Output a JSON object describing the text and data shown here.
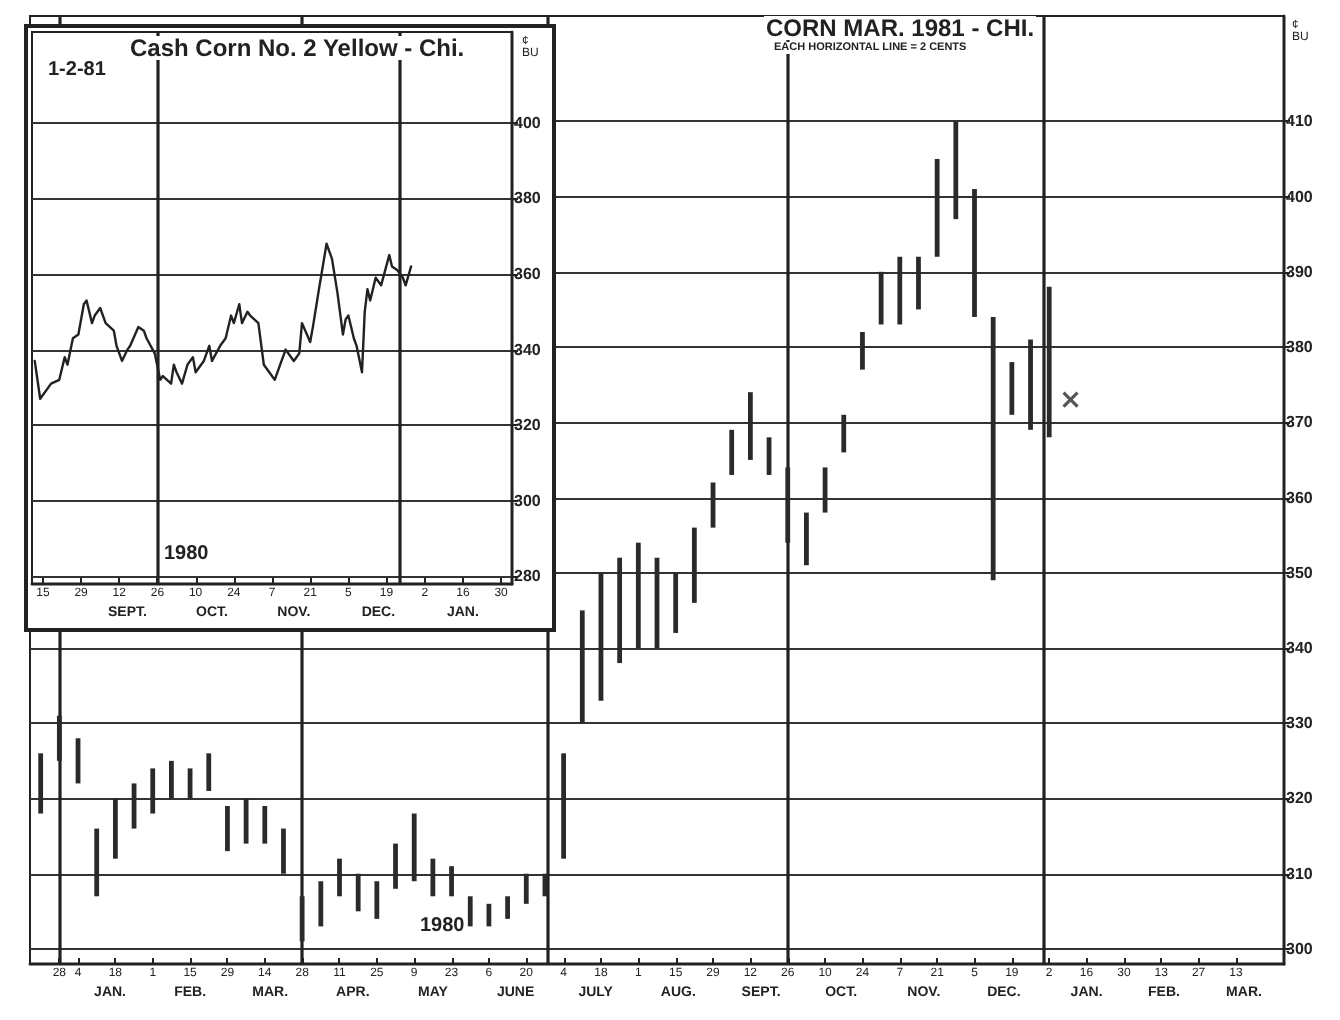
{
  "chart_data": [
    {
      "type": "line",
      "title": "Cash Corn No. 2 Yellow - Chi.",
      "ylabel": "¢ BU",
      "annotations": [
        "1-2-81",
        "1980"
      ],
      "x": [
        "1980-08-12",
        "1980-08-14",
        "1980-08-18",
        "1980-08-21",
        "1980-08-23",
        "1980-08-24",
        "1980-08-26",
        "1980-08-28",
        "1980-08-30",
        "1980-08-31",
        "1980-09-02",
        "1980-09-03",
        "1980-09-05",
        "1980-09-07",
        "1980-09-10",
        "1980-09-11",
        "1980-09-13",
        "1980-09-15",
        "1980-09-16",
        "1980-09-19",
        "1980-09-21",
        "1980-09-22",
        "1980-09-25",
        "1980-09-27",
        "1980-09-28",
        "1980-10-01",
        "1980-10-02",
        "1980-10-03",
        "1980-10-05",
        "1980-10-07",
        "1980-10-09",
        "1980-10-10",
        "1980-10-11",
        "1980-10-13",
        "1980-10-15",
        "1980-10-16",
        "1980-10-19",
        "1980-10-21",
        "1980-10-23",
        "1980-10-24",
        "1980-10-26",
        "1980-10-27",
        "1980-10-29",
        "1980-10-30",
        "1980-11-02",
        "1980-11-04",
        "1980-11-06",
        "1980-11-08",
        "1980-11-10",
        "1980-11-12",
        "1980-11-15",
        "1980-11-17",
        "1980-11-18",
        "1980-11-21",
        "1980-11-22",
        "1980-11-24",
        "1980-11-27",
        "1980-11-29",
        "1980-12-01",
        "1980-12-03",
        "1980-12-04",
        "1980-12-05",
        "1980-12-07",
        "1980-12-08",
        "1980-12-10",
        "1980-12-11",
        "1980-12-12",
        "1980-12-13",
        "1980-12-15",
        "1980-12-17",
        "1980-12-20",
        "1980-12-21",
        "1980-12-23",
        "1980-12-25",
        "1980-12-26",
        "1980-12-28"
      ],
      "series": [
        {
          "color": "#222222",
          "values": [
            337,
            327,
            331,
            332,
            338,
            336,
            343,
            344,
            352,
            353,
            347,
            349,
            351,
            347,
            345,
            341,
            337,
            340,
            341,
            346,
            345,
            343,
            339,
            332,
            333,
            331,
            336,
            334,
            331,
            336,
            338,
            334,
            335,
            337,
            341,
            337,
            341,
            343,
            349,
            347,
            352,
            347,
            350,
            349,
            347,
            336,
            334,
            332,
            336,
            340,
            337,
            339,
            347,
            342,
            346,
            355,
            368,
            364,
            355,
            344,
            348,
            349,
            343,
            341,
            334,
            350,
            356,
            353,
            359,
            357,
            365,
            362,
            361,
            359,
            357,
            362
          ]
        }
      ],
      "xlim": [
        "1980-08-11",
        "1981-02-03"
      ],
      "xticks": [
        {
          "value": "1980-08-15",
          "label": "15"
        },
        {
          "value": "1980-08-29",
          "label": "29"
        },
        {
          "value": "1980-09-12",
          "label": "12"
        },
        {
          "value": "1980-09-26",
          "label": "26"
        },
        {
          "value": "1980-10-10",
          "label": "10"
        },
        {
          "value": "1980-10-24",
          "label": "24"
        },
        {
          "value": "1980-11-07",
          "label": "7"
        },
        {
          "value": "1980-11-21",
          "label": "21"
        },
        {
          "value": "1980-12-05",
          "label": "5"
        },
        {
          "value": "1980-12-19",
          "label": "19"
        },
        {
          "value": "1981-01-02",
          "label": "2"
        },
        {
          "value": "1981-01-16",
          "label": "16"
        },
        {
          "value": "1981-01-30",
          "label": "30"
        }
      ],
      "x2lim": [
        "1980-08-11",
        "1981-02-03"
      ],
      "x2ticks": [
        {
          "value": "1980-09-15",
          "label": "SEPT."
        },
        {
          "value": "1980-10-16",
          "label": "OCT."
        },
        {
          "value": "1980-11-15",
          "label": "NOV."
        },
        {
          "value": "1980-12-16",
          "label": "DEC."
        },
        {
          "value": "1981-01-16",
          "label": "JAN."
        }
      ],
      "ylim": [
        278,
        424
      ],
      "yticks": [
        280,
        300,
        320,
        340,
        360,
        380,
        400
      ],
      "grid": "y",
      "marker": "none",
      "line_style": "solid",
      "ref_lines": [
        {
          "axis": "x",
          "value": "1980-09-26",
          "color": "#222222"
        },
        {
          "axis": "x",
          "value": "1980-12-24",
          "color": "#222222"
        }
      ]
    },
    {
      "type": "bar",
      "title": "CORN MAR. 1981 - CHI.",
      "subtitle": "EACH HORIZONTAL LINE = 2 CENTS",
      "ylabel": "¢ BU",
      "annotations": [
        "1980"
      ],
      "x": [
        "1979-12-21",
        "1979-12-28",
        "1980-01-04",
        "1980-01-11",
        "1980-01-18",
        "1980-01-25",
        "1980-02-01",
        "1980-02-08",
        "1980-02-15",
        "1980-02-22",
        "1980-02-29",
        "1980-03-07",
        "1980-03-14",
        "1980-03-21",
        "1980-03-28",
        "1980-04-04",
        "1980-04-11",
        "1980-04-18",
        "1980-04-25",
        "1980-05-02",
        "1980-05-09",
        "1980-05-16",
        "1980-05-23",
        "1980-05-30",
        "1980-06-06",
        "1980-06-13",
        "1980-06-20",
        "1980-06-27",
        "1980-07-04",
        "1980-07-11",
        "1980-07-18",
        "1980-07-25",
        "1980-08-01",
        "1980-08-08",
        "1980-08-15",
        "1980-08-22",
        "1980-08-29",
        "1980-09-05",
        "1980-09-12",
        "1980-09-19",
        "1980-09-26",
        "1980-10-03",
        "1980-10-10",
        "1980-10-17",
        "1980-10-24",
        "1980-10-31",
        "1980-11-07",
        "1980-11-14",
        "1980-11-21",
        "1980-11-28",
        "1980-12-05",
        "1980-12-12",
        "1980-12-19",
        "1980-12-26",
        "1981-01-02"
      ],
      "series": [
        {
          "color": "#2a2a2a",
          "base": [
            318,
            325,
            322,
            307,
            312,
            316,
            318,
            320,
            320,
            321,
            313,
            314,
            314,
            310,
            301,
            303,
            307,
            305,
            304,
            308,
            309,
            307,
            307,
            303,
            303,
            304,
            306,
            307,
            312,
            330,
            333,
            338,
            340,
            340,
            342,
            346,
            356,
            363,
            365,
            363,
            354,
            351,
            358,
            366,
            377,
            383,
            383,
            385,
            392,
            397,
            384,
            349,
            371,
            369,
            368
          ],
          "values": [
            8,
            6,
            6,
            9,
            8,
            6,
            6,
            5,
            4,
            5,
            6,
            6,
            5,
            6,
            6,
            6,
            5,
            5,
            5,
            6,
            9,
            5,
            4,
            4,
            3,
            3,
            4,
            3,
            14,
            15,
            17,
            14,
            14,
            12,
            8,
            10,
            6,
            6,
            9,
            5,
            10,
            7,
            6,
            5,
            5,
            7,
            9,
            7,
            13,
            13,
            17,
            35,
            7,
            12,
            20
          ]
        },
        {
          "type": "scatter",
          "marker": "cross",
          "color": "#2a2a2a",
          "x": [
            "1981-01-10"
          ],
          "values": [
            373
          ]
        }
      ],
      "xlim": [
        "1979-12-17",
        "1981-03-31"
      ],
      "xticks": [
        {
          "value": "1979-12-28",
          "label": "28"
        },
        {
          "value": "1980-01-04",
          "label": "4"
        },
        {
          "value": "1980-01-18",
          "label": "18"
        },
        {
          "value": "1980-02-01",
          "label": "1"
        },
        {
          "value": "1980-02-15",
          "label": "15"
        },
        {
          "value": "1980-02-29",
          "label": "29"
        },
        {
          "value": "1980-03-14",
          "label": "14"
        },
        {
          "value": "1980-03-28",
          "label": "28"
        },
        {
          "value": "1980-04-11",
          "label": "11"
        },
        {
          "value": "1980-04-25",
          "label": "25"
        },
        {
          "value": "1980-05-09",
          "label": "9"
        },
        {
          "value": "1980-05-23",
          "label": "23"
        },
        {
          "value": "1980-06-06",
          "label": "6"
        },
        {
          "value": "1980-06-20",
          "label": "20"
        },
        {
          "value": "1980-07-04",
          "label": "4"
        },
        {
          "value": "1980-07-18",
          "label": "18"
        },
        {
          "value": "1980-08-01",
          "label": "1"
        },
        {
          "value": "1980-08-15",
          "label": "15"
        },
        {
          "value": "1980-08-29",
          "label": "29"
        },
        {
          "value": "1980-09-12",
          "label": "12"
        },
        {
          "value": "1980-09-26",
          "label": "26"
        },
        {
          "value": "1980-10-10",
          "label": "10"
        },
        {
          "value": "1980-10-24",
          "label": "24"
        },
        {
          "value": "1980-11-07",
          "label": "7"
        },
        {
          "value": "1980-11-21",
          "label": "21"
        },
        {
          "value": "1980-12-05",
          "label": "5"
        },
        {
          "value": "1980-12-19",
          "label": "19"
        },
        {
          "value": "1981-01-02",
          "label": "2"
        },
        {
          "value": "1981-01-16",
          "label": "16"
        },
        {
          "value": "1981-01-30",
          "label": "30"
        },
        {
          "value": "1981-02-13",
          "label": "13"
        },
        {
          "value": "1981-02-27",
          "label": "27"
        },
        {
          "value": "1981-03-13",
          "label": "13"
        }
      ],
      "x2lim": [
        "1979-12-17",
        "1981-03-31"
      ],
      "x2ticks": [
        {
          "value": "1980-01-16",
          "label": "JAN."
        },
        {
          "value": "1980-02-15",
          "label": "FEB."
        },
        {
          "value": "1980-03-16",
          "label": "MAR."
        },
        {
          "value": "1980-04-16",
          "label": "APR."
        },
        {
          "value": "1980-05-16",
          "label": "MAY"
        },
        {
          "value": "1980-06-16",
          "label": "JUNE"
        },
        {
          "value": "1980-07-16",
          "label": "JULY"
        },
        {
          "value": "1980-08-16",
          "label": "AUG."
        },
        {
          "value": "1980-09-16",
          "label": "SEPT."
        },
        {
          "value": "1980-10-16",
          "label": "OCT."
        },
        {
          "value": "1980-11-16",
          "label": "NOV."
        },
        {
          "value": "1980-12-16",
          "label": "DEC."
        },
        {
          "value": "1981-01-16",
          "label": "JAN."
        },
        {
          "value": "1981-02-14",
          "label": "FEB."
        },
        {
          "value": "1981-03-16",
          "label": "MAR."
        }
      ],
      "ylim": [
        298,
        424
      ],
      "yticks": [
        300,
        310,
        320,
        330,
        340,
        350,
        360,
        370,
        380,
        390,
        400,
        410
      ],
      "grid": "y",
      "ref_lines": [
        {
          "axis": "x",
          "value": "1979-12-28",
          "color": "#222222"
        },
        {
          "axis": "x",
          "value": "1980-03-28",
          "color": "#222222"
        },
        {
          "axis": "x",
          "value": "1980-06-28",
          "color": "#222222"
        },
        {
          "axis": "x",
          "value": "1980-09-26",
          "color": "#222222"
        },
        {
          "axis": "x",
          "value": "1980-12-31",
          "color": "#222222"
        }
      ]
    }
  ]
}
